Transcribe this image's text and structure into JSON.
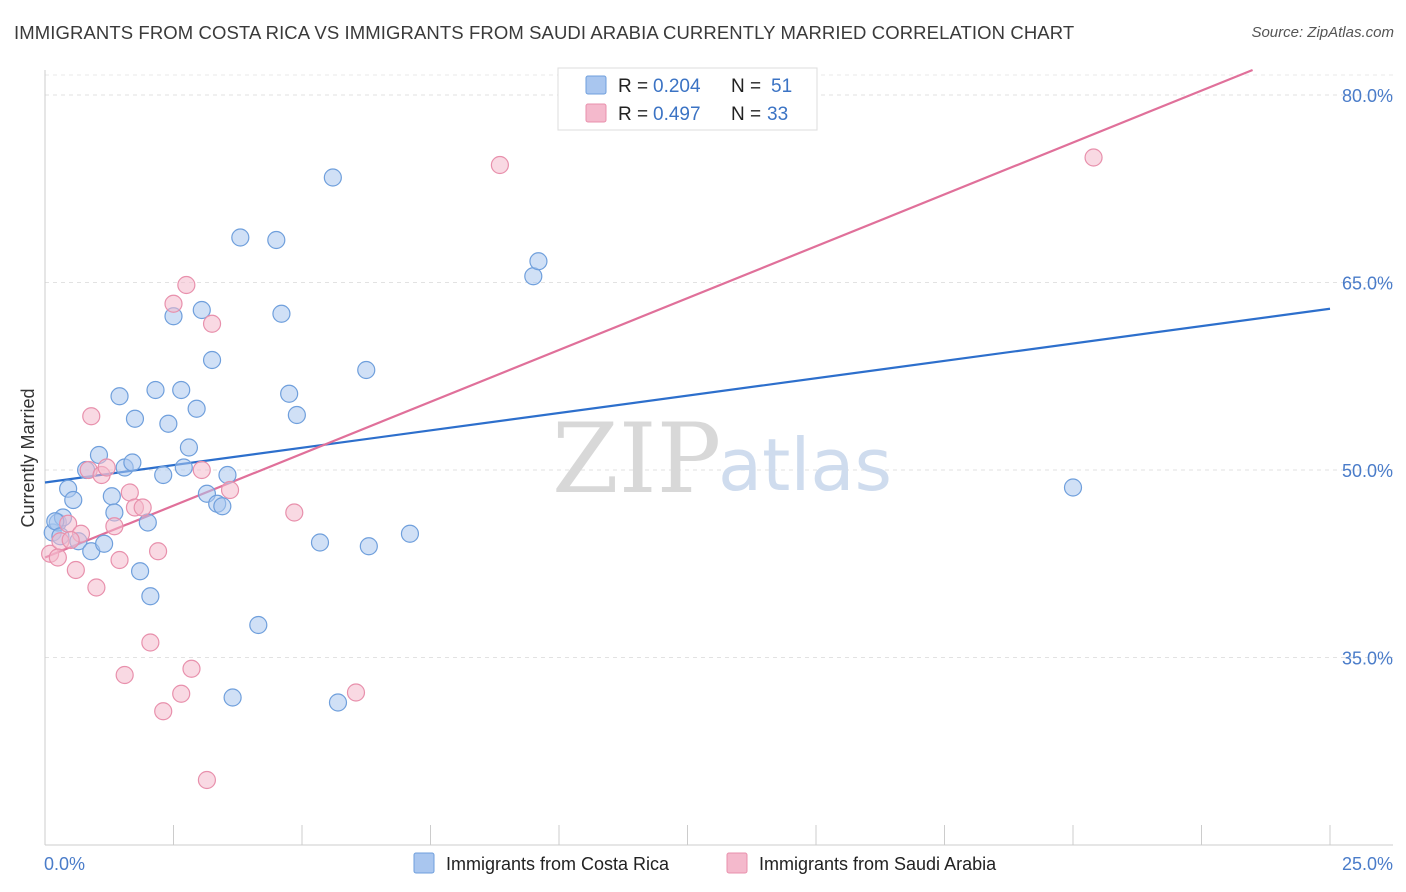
{
  "header": {
    "title": "IMMIGRANTS FROM COSTA RICA VS IMMIGRANTS FROM SAUDI ARABIA CURRENTLY MARRIED CORRELATION CHART",
    "source": "Source: ZipAtlas.com"
  },
  "watermark": {
    "zip": "ZIP",
    "atlas": "atlas"
  },
  "legend": {
    "rows": [
      {
        "r_label": "R = ",
        "r_value": "0.204",
        "n_label": "N = ",
        "n_value": "51",
        "color": "#a9c6ef"
      },
      {
        "r_label": "R = ",
        "r_value": "0.497",
        "n_label": "N = ",
        "n_value": "33",
        "color": "#f4b9cc"
      }
    ]
  },
  "chart_data": {
    "type": "scatter",
    "title": "IMMIGRANTS FROM COSTA RICA VS IMMIGRANTS FROM SAUDI ARABIA CURRENTLY MARRIED CORRELATION CHART",
    "xlabel": "",
    "ylabel": "Currently Married",
    "xlim": [
      0,
      25
    ],
    "ylim": [
      20,
      82
    ],
    "x_tick_labels": [
      "0.0%",
      "25.0%"
    ],
    "y_ticks": [
      35,
      50,
      65,
      80
    ],
    "y_tick_labels": [
      "35.0%",
      "50.0%",
      "65.0%",
      "80.0%"
    ],
    "grid": true,
    "legend_position": "top-center",
    "series": [
      {
        "name": "Immigrants from Costa Rica",
        "color": "#a9c6ef",
        "stroke": "#6f9fdc",
        "line_color": "#2d6fcc",
        "trend": [
          [
            0,
            49.0
          ],
          [
            25,
            62.9
          ]
        ],
        "points": [
          [
            0.15,
            45.0
          ],
          [
            0.25,
            45.8
          ],
          [
            0.35,
            46.2
          ],
          [
            0.45,
            48.5
          ],
          [
            0.55,
            47.6
          ],
          [
            0.65,
            44.3
          ],
          [
            0.8,
            50.0
          ],
          [
            0.9,
            43.5
          ],
          [
            1.05,
            51.2
          ],
          [
            1.15,
            44.1
          ],
          [
            1.3,
            47.9
          ],
          [
            1.35,
            46.6
          ],
          [
            1.45,
            55.9
          ],
          [
            1.55,
            50.2
          ],
          [
            1.7,
            50.6
          ],
          [
            1.75,
            54.1
          ],
          [
            1.85,
            41.9
          ],
          [
            2.0,
            45.8
          ],
          [
            2.05,
            39.9
          ],
          [
            2.15,
            56.4
          ],
          [
            2.3,
            49.6
          ],
          [
            2.4,
            53.7
          ],
          [
            2.5,
            62.3
          ],
          [
            2.65,
            56.4
          ],
          [
            2.7,
            50.2
          ],
          [
            2.8,
            51.8
          ],
          [
            2.95,
            54.9
          ],
          [
            3.05,
            62.8
          ],
          [
            3.15,
            48.1
          ],
          [
            3.25,
            58.8
          ],
          [
            3.35,
            47.3
          ],
          [
            3.45,
            47.1
          ],
          [
            3.55,
            49.6
          ],
          [
            3.65,
            31.8
          ],
          [
            3.8,
            68.6
          ],
          [
            4.15,
            37.6
          ],
          [
            4.5,
            68.4
          ],
          [
            4.6,
            62.5
          ],
          [
            4.75,
            56.1
          ],
          [
            4.9,
            54.4
          ],
          [
            5.35,
            44.2
          ],
          [
            5.6,
            73.4
          ],
          [
            5.7,
            31.4
          ],
          [
            6.25,
            58.0
          ],
          [
            6.3,
            43.9
          ],
          [
            7.1,
            44.9
          ],
          [
            9.5,
            65.5
          ],
          [
            9.6,
            66.7
          ],
          [
            20.0,
            48.6
          ],
          [
            0.2,
            45.9
          ],
          [
            0.3,
            44.7
          ]
        ]
      },
      {
        "name": "Immigrants from Saudi Arabia",
        "color": "#f4b9cc",
        "stroke": "#e890ac",
        "line_color": "#e0709a",
        "trend": [
          [
            0,
            43.0
          ],
          [
            25,
            84.5
          ]
        ],
        "points": [
          [
            0.1,
            43.3
          ],
          [
            0.3,
            44.3
          ],
          [
            0.45,
            45.7
          ],
          [
            0.6,
            42.0
          ],
          [
            0.7,
            44.9
          ],
          [
            0.85,
            50.0
          ],
          [
            0.9,
            54.3
          ],
          [
            1.0,
            40.6
          ],
          [
            1.1,
            49.6
          ],
          [
            1.2,
            50.2
          ],
          [
            1.35,
            45.5
          ],
          [
            1.45,
            42.8
          ],
          [
            1.55,
            33.6
          ],
          [
            1.65,
            48.2
          ],
          [
            1.75,
            47.0
          ],
          [
            1.9,
            47.0
          ],
          [
            2.05,
            36.2
          ],
          [
            2.2,
            43.5
          ],
          [
            2.3,
            30.7
          ],
          [
            2.5,
            63.3
          ],
          [
            2.65,
            32.1
          ],
          [
            2.75,
            64.8
          ],
          [
            2.85,
            34.1
          ],
          [
            3.05,
            50.0
          ],
          [
            3.15,
            25.2
          ],
          [
            3.25,
            61.7
          ],
          [
            3.6,
            48.4
          ],
          [
            4.85,
            46.6
          ],
          [
            6.05,
            32.2
          ],
          [
            8.85,
            74.4
          ],
          [
            20.4,
            75.0
          ],
          [
            0.25,
            43.0
          ],
          [
            0.5,
            44.4
          ]
        ]
      }
    ]
  },
  "bottom_legend": [
    {
      "label": "Immigrants from Costa Rica",
      "color": "#a9c6ef"
    },
    {
      "label": "Immigrants from Saudi Arabia",
      "color": "#f4b9cc"
    }
  ]
}
